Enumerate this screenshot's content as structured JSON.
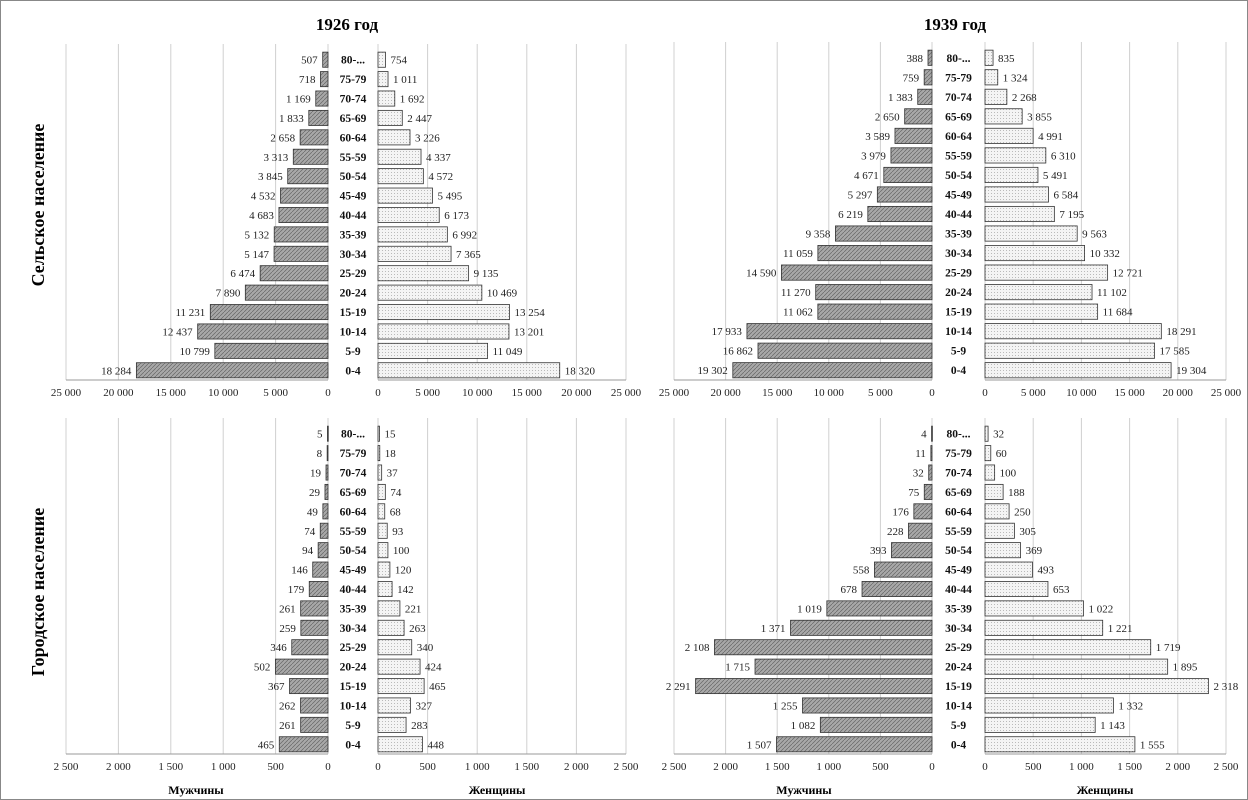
{
  "chart_data": {
    "type": "bar",
    "categories": [
      "0-4",
      "5-9",
      "10-14",
      "15-19",
      "20-24",
      "25-29",
      "30-34",
      "35-39",
      "40-44",
      "45-49",
      "50-54",
      "55-59",
      "60-64",
      "65-69",
      "70-74",
      "75-79",
      "80-..."
    ],
    "labels": {
      "row_rural": "Сельское население",
      "row_urban": "Городское население",
      "males": "Мужчины",
      "females": "Женщины"
    },
    "panels": [
      {
        "title": "1926 год",
        "row": "row_rural",
        "xlim": [
          0,
          25000
        ],
        "ticks": [
          25000,
          20000,
          15000,
          10000,
          5000,
          0
        ],
        "tick_labels": [
          "25 000",
          "20 000",
          "15 000",
          "10 000",
          "5 000",
          "0"
        ],
        "series": [
          {
            "name": "Мужчины",
            "values": [
              18284,
              10799,
              12437,
              11231,
              7890,
              6474,
              5147,
              5132,
              4683,
              4532,
              3845,
              3313,
              2658,
              1833,
              1169,
              718,
              507
            ]
          },
          {
            "name": "Женщины",
            "values": [
              18320,
              11049,
              13201,
              13254,
              10469,
              9135,
              7365,
              6992,
              6173,
              5495,
              4572,
              4337,
              3226,
              2447,
              1692,
              1011,
              754
            ]
          }
        ]
      },
      {
        "title": "1939 год",
        "row": "row_rural",
        "xlim": [
          0,
          25000
        ],
        "ticks": [
          25000,
          20000,
          15000,
          10000,
          5000,
          0
        ],
        "tick_labels": [
          "25 000",
          "20 000",
          "15 000",
          "10 000",
          "5 000",
          "0"
        ],
        "series": [
          {
            "name": "Мужчины",
            "values": [
              19302,
              16862,
              17933,
              11062,
              11270,
              14590,
              11059,
              9358,
              6219,
              5297,
              4671,
              3979,
              3589,
              2650,
              1383,
              759,
              388
            ]
          },
          {
            "name": "Женщины",
            "values": [
              19304,
              17585,
              18291,
              11684,
              11102,
              12721,
              10332,
              9563,
              7195,
              6584,
              5491,
              6310,
              4991,
              3855,
              2268,
              1324,
              835
            ]
          }
        ]
      },
      {
        "title": "",
        "row": "row_urban",
        "xlim": [
          0,
          2500
        ],
        "ticks": [
          2500,
          2000,
          1500,
          1000,
          500,
          0
        ],
        "tick_labels": [
          "2 500",
          "2 000",
          "1 500",
          "1 000",
          "500",
          "0"
        ],
        "series": [
          {
            "name": "Мужчины",
            "values": [
              465,
              261,
              262,
              367,
              502,
              346,
              259,
              261,
              179,
              146,
              94,
              74,
              49,
              29,
              19,
              8,
              5
            ]
          },
          {
            "name": "Женщины",
            "values": [
              448,
              283,
              327,
              465,
              424,
              340,
              263,
              221,
              142,
              120,
              100,
              93,
              68,
              74,
              37,
              18,
              15
            ]
          }
        ]
      },
      {
        "title": "",
        "row": "row_urban",
        "xlim": [
          0,
          2500
        ],
        "ticks": [
          2500,
          2000,
          1500,
          1000,
          500,
          0
        ],
        "tick_labels": [
          "2 500",
          "2 000",
          "1 500",
          "1 000",
          "500",
          "0"
        ],
        "series": [
          {
            "name": "Мужчины",
            "values": [
              1507,
              1082,
              1255,
              2291,
              1715,
              2108,
              1371,
              1019,
              678,
              558,
              393,
              228,
              176,
              75,
              32,
              11,
              4
            ]
          },
          {
            "name": "Женщины",
            "values": [
              1555,
              1143,
              1332,
              2318,
              1895,
              1719,
              1221,
              1022,
              653,
              493,
              369,
              305,
              250,
              188,
              100,
              60,
              32
            ]
          }
        ]
      }
    ],
    "grid": true,
    "colors": {
      "male_fill": "#a8a8a8",
      "female_fill": "#f4f4f4",
      "bar_stroke": "#333333",
      "grid": "#d0d0d0"
    }
  }
}
